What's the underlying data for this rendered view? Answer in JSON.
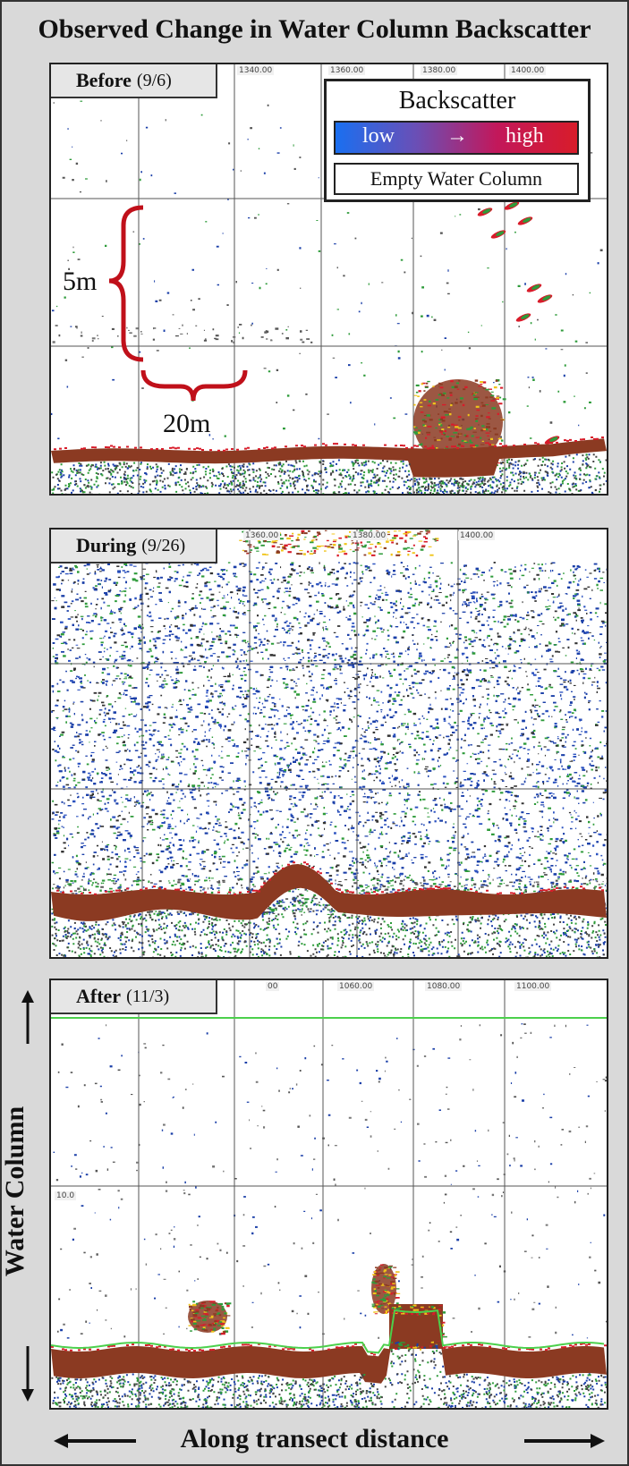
{
  "title": "Observed Change in Water Column Backscatter",
  "panels": {
    "before": {
      "label": "Before",
      "date": "(9/6)",
      "ticks": [
        "1340.00",
        "1360.00",
        "1380.00",
        "1400.00"
      ]
    },
    "during": {
      "label": "During",
      "date": "(9/26)",
      "ticks": [
        "1360.00",
        "1380.00",
        "1400.00"
      ]
    },
    "after": {
      "label": "After",
      "date": "(11/3)",
      "ticks": [
        "00",
        "1060.00",
        "1080.00",
        "1100.00"
      ],
      "depth_tick": "10.0"
    }
  },
  "scale": {
    "vertical": "5m",
    "horizontal": "20m"
  },
  "legend": {
    "title": "Backscatter",
    "low": "low",
    "arrow": "→",
    "high": "high",
    "empty": "Empty Water Column"
  },
  "axes": {
    "vertical": "Water Column",
    "horizontal": "Along transect distance"
  },
  "colors": {
    "seafloor": "#8b3a22",
    "low": "#1a3fa8",
    "mid": "#2e9b3a",
    "high": "#d81c2a",
    "grid": "#555555",
    "bottom_line": "#4cd04c",
    "bracket": "#c0101a"
  }
}
